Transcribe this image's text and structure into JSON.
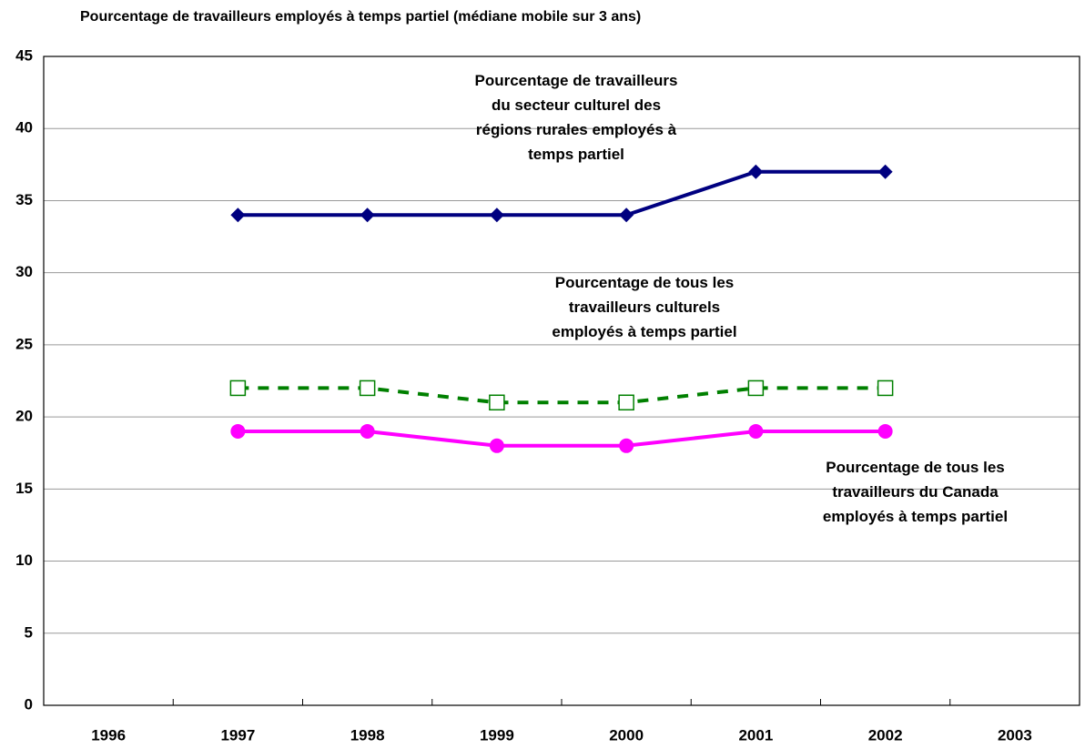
{
  "chart_data": {
    "type": "line",
    "title": "Pourcentage de travailleurs employés à temps partiel (médiane mobile sur 3 ans)",
    "categories": [
      "1996",
      "1997",
      "1998",
      "1999",
      "2000",
      "2001",
      "2002",
      "2003"
    ],
    "series": [
      {
        "name": "Pourcentage de travailleurs du secteur culturel des régions rurales employés à temps partiel",
        "color": "#000080",
        "marker": "diamond",
        "dash": false,
        "values": [
          null,
          34,
          34,
          34,
          34,
          37,
          37,
          null
        ]
      },
      {
        "name": "Pourcentage de tous les travailleurs culturels employés à temps partiel",
        "color": "#008000",
        "marker": "square",
        "dash": true,
        "values": [
          null,
          22,
          22,
          21,
          21,
          22,
          22,
          null
        ]
      },
      {
        "name": "Pourcentage de tous les travailleurs du Canada employés à temps partiel",
        "color": "#ff00ff",
        "marker": "circle",
        "dash": false,
        "values": [
          null,
          19,
          19,
          18,
          18,
          19,
          19,
          null
        ]
      }
    ],
    "ylim": [
      0,
      45
    ],
    "yticks": [
      0,
      5,
      10,
      15,
      20,
      25,
      30,
      35,
      40,
      45
    ],
    "grid": true
  }
}
